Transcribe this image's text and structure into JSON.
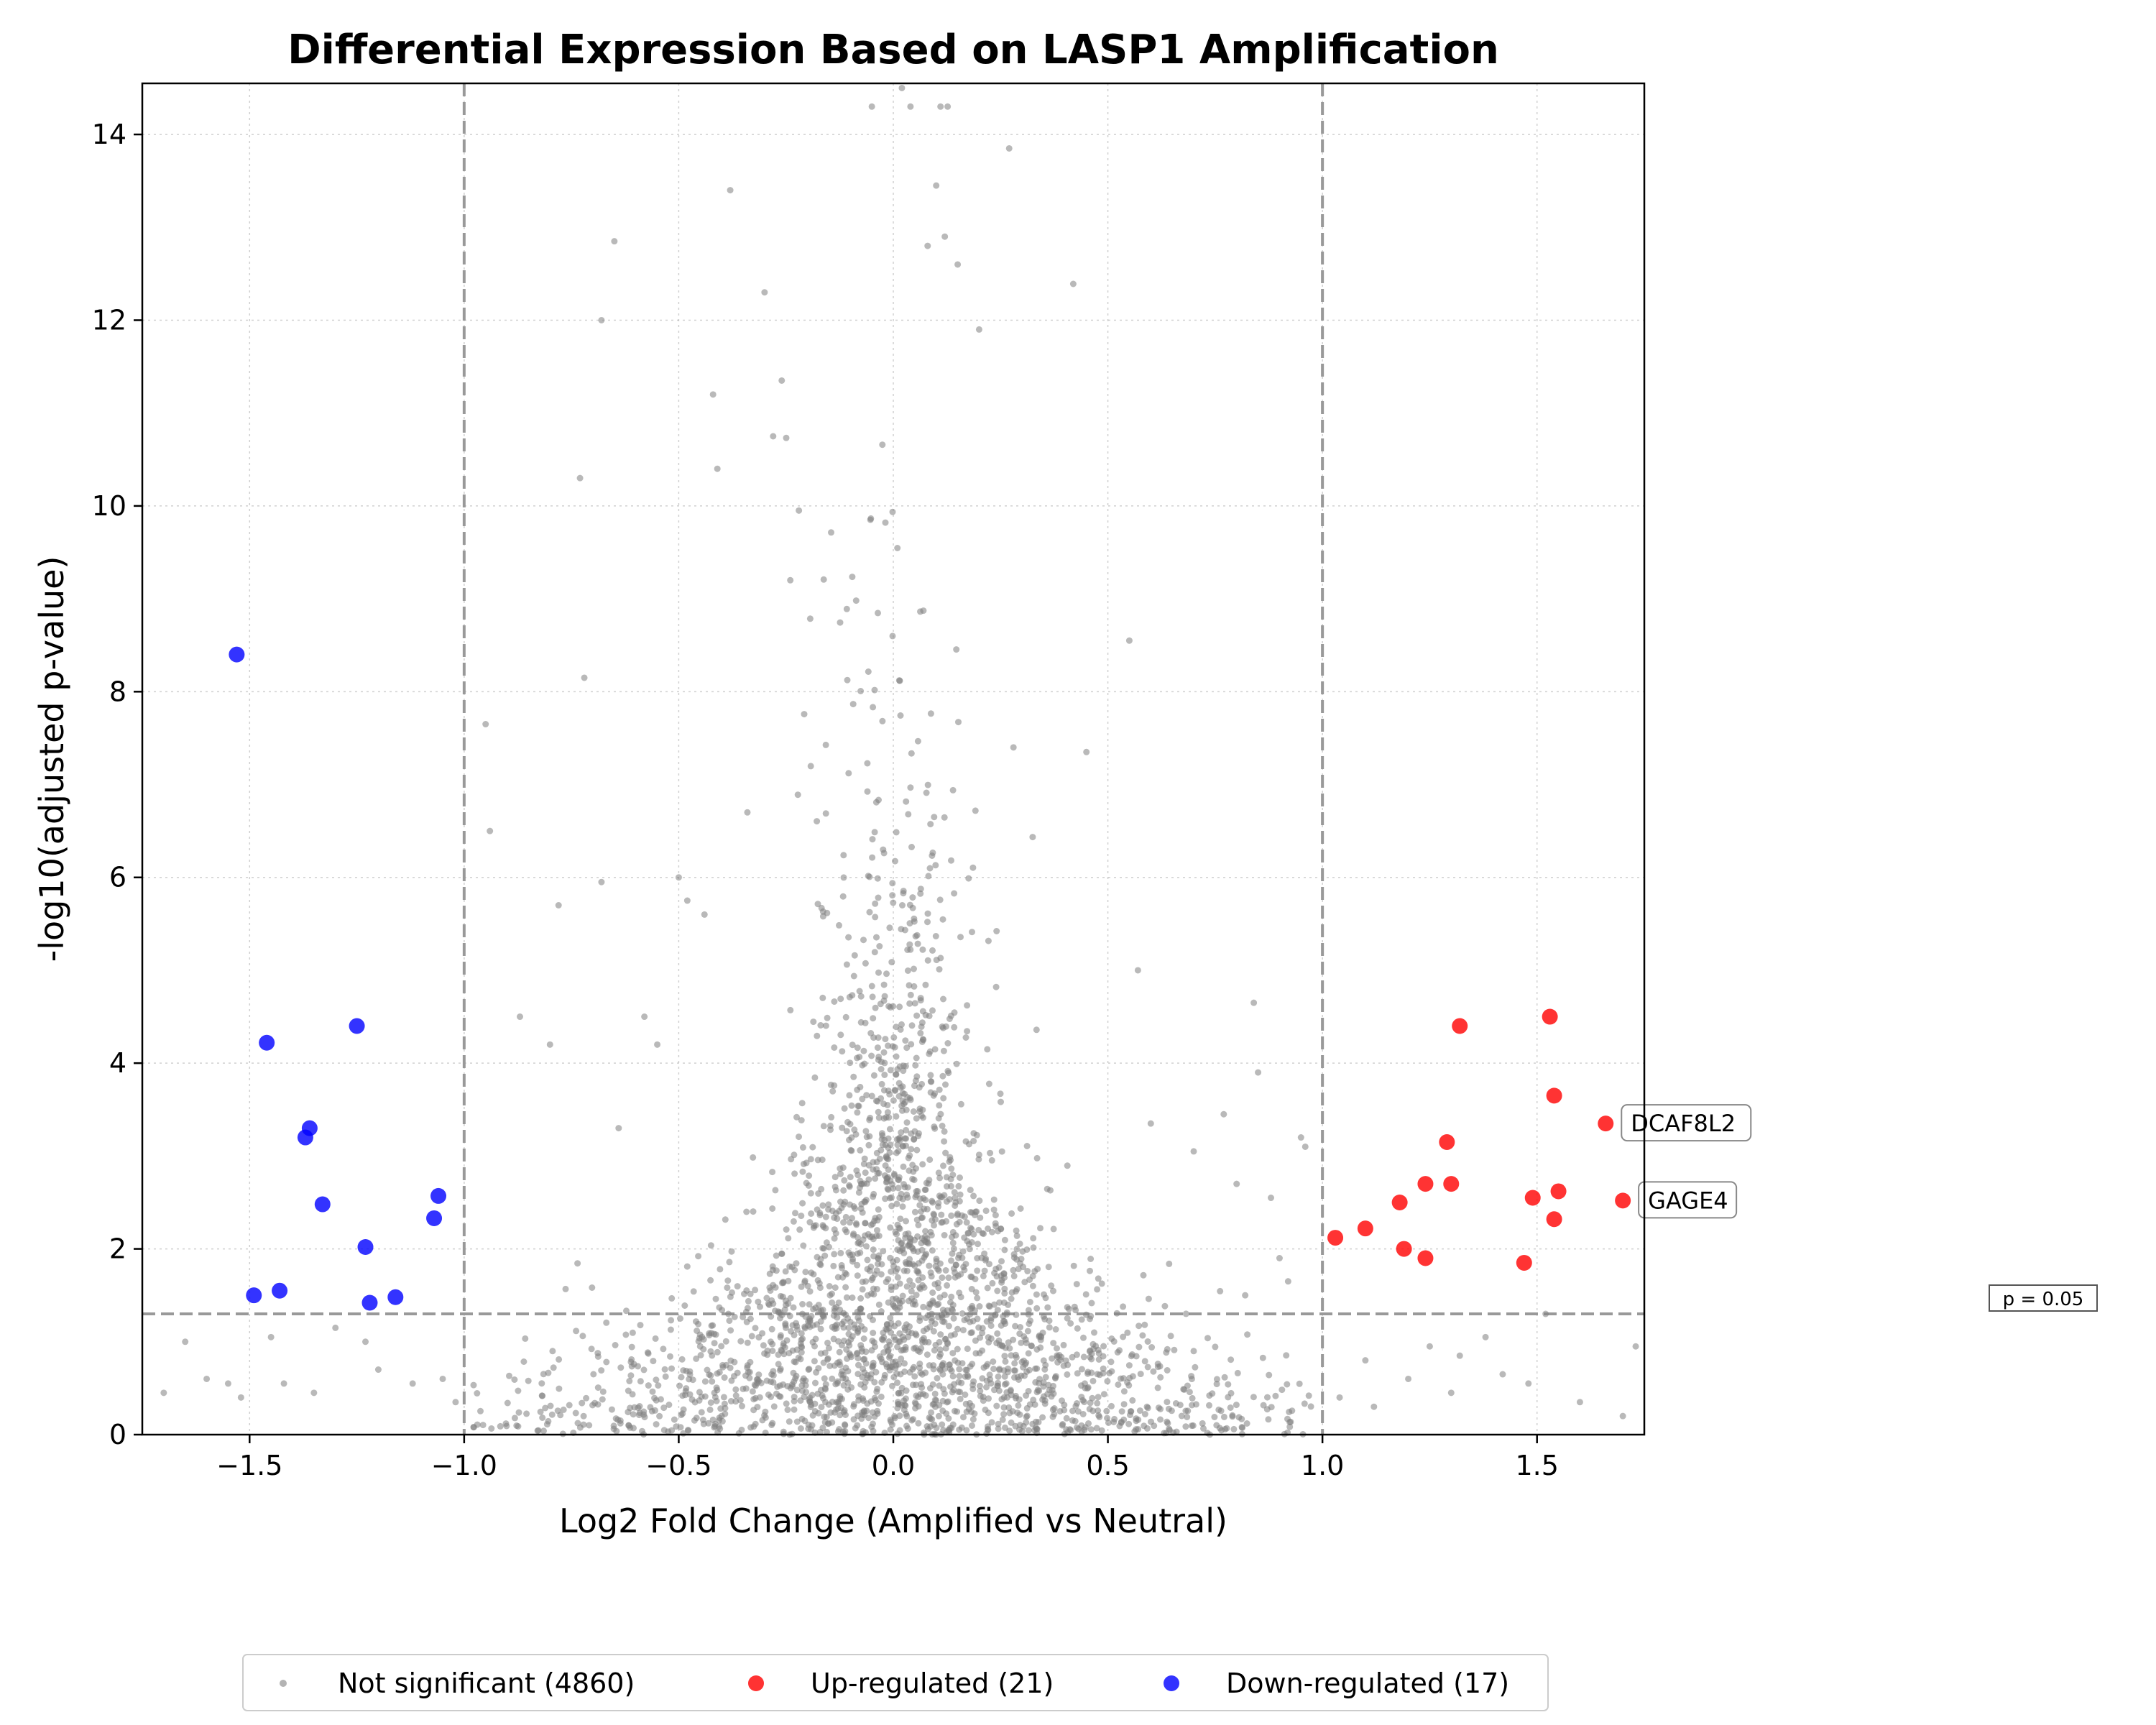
{
  "chart_data": {
    "type": "scatter",
    "title": "Differential Expression Based on LASP1 Amplification",
    "xlabel": "Log2 Fold Change (Amplified vs Neutral)",
    "ylabel": "-log10(adjusted p-value)",
    "xlim": [
      -1.75,
      1.75
    ],
    "ylim": [
      0,
      14.55
    ],
    "xticks": [
      -1.5,
      -1.0,
      -0.5,
      0.0,
      0.5,
      1.0,
      1.5
    ],
    "xtick_labels": [
      "−1.5",
      "−1.0",
      "−0.5",
      "0.0",
      "0.5",
      "1.0",
      "1.5"
    ],
    "yticks": [
      0,
      2,
      4,
      6,
      8,
      10,
      12,
      14
    ],
    "ytick_labels": [
      "0",
      "2",
      "4",
      "6",
      "8",
      "10",
      "12",
      "14"
    ],
    "grid": true,
    "legend_position": "bottom-center",
    "thresholds": {
      "log2fc": [
        -1.0,
        1.0
      ],
      "neg_log10_p": 1.3,
      "p_label": "p = 0.05"
    },
    "series": [
      {
        "name": "Not significant (4860)",
        "color": "#808080",
        "count": 4860,
        "points": [
          [
            -0.68,
            12.0
          ],
          [
            -0.65,
            12.85
          ],
          [
            -0.42,
            11.2
          ],
          [
            -0.41,
            10.4
          ],
          [
            -0.38,
            13.4
          ],
          [
            -0.3,
            12.3
          ],
          [
            -0.28,
            10.75
          ],
          [
            -0.26,
            11.35
          ],
          [
            -0.24,
            9.2
          ],
          [
            -0.22,
            9.95
          ],
          [
            0.1,
            13.45
          ],
          [
            0.08,
            12.8
          ],
          [
            0.12,
            12.9
          ],
          [
            0.15,
            12.6
          ],
          [
            0.2,
            11.9
          ],
          [
            0.27,
            13.85
          ],
          [
            0.04,
            14.3
          ],
          [
            -0.05,
            14.3
          ],
          [
            0.02,
            14.5
          ],
          [
            0.11,
            14.3
          ],
          [
            -0.73,
            10.3
          ],
          [
            -0.72,
            8.15
          ],
          [
            -0.95,
            7.65
          ],
          [
            -0.94,
            6.5
          ],
          [
            -0.68,
            5.95
          ],
          [
            -0.78,
            5.7
          ],
          [
            -0.87,
            4.5
          ],
          [
            -0.8,
            4.2
          ],
          [
            0.55,
            8.55
          ],
          [
            0.45,
            7.35
          ],
          [
            0.28,
            7.4
          ],
          [
            0.57,
            5.0
          ],
          [
            0.84,
            4.65
          ],
          [
            0.85,
            3.9
          ],
          [
            0.95,
            3.2
          ],
          [
            0.96,
            3.1
          ],
          [
            0.88,
            2.55
          ],
          [
            0.8,
            2.7
          ],
          [
            0.77,
            3.45
          ],
          [
            0.7,
            3.05
          ],
          [
            0.6,
            3.35
          ],
          [
            -0.5,
            6.0
          ],
          [
            -0.48,
            5.75
          ],
          [
            -0.44,
            5.6
          ],
          [
            -0.34,
            6.7
          ],
          [
            -0.55,
            4.2
          ],
          [
            -0.58,
            4.5
          ],
          [
            -0.64,
            3.3
          ],
          [
            -1.3,
            1.15
          ],
          [
            -1.45,
            1.05
          ],
          [
            -1.65,
            1.0
          ],
          [
            -1.6,
            0.6
          ],
          [
            -1.55,
            0.55
          ],
          [
            -1.42,
            0.55
          ],
          [
            -1.35,
            0.45
          ],
          [
            -1.23,
            1.0
          ],
          [
            -1.2,
            0.7
          ],
          [
            -1.12,
            0.55
          ],
          [
            -1.05,
            0.6
          ],
          [
            -1.02,
            0.35
          ],
          [
            -1.7,
            0.45
          ],
          [
            -1.52,
            0.4
          ],
          [
            1.1,
            0.8
          ],
          [
            1.2,
            0.6
          ],
          [
            1.25,
            0.95
          ],
          [
            1.32,
            0.85
          ],
          [
            1.38,
            1.05
          ],
          [
            1.42,
            0.65
          ],
          [
            1.48,
            0.55
          ],
          [
            1.52,
            1.3
          ],
          [
            1.6,
            0.35
          ],
          [
            1.7,
            0.2
          ],
          [
            1.73,
            0.95
          ],
          [
            1.04,
            0.4
          ],
          [
            1.12,
            0.3
          ],
          [
            1.3,
            0.45
          ],
          [
            0.92,
            1.65
          ],
          [
            0.9,
            1.9
          ],
          [
            0.82,
            1.5
          ]
        ]
      },
      {
        "name": "Up-regulated (21)",
        "color": "#ff0000",
        "count": 21,
        "points": [
          [
            1.03,
            2.12
          ],
          [
            1.1,
            2.22
          ],
          [
            1.18,
            2.5
          ],
          [
            1.19,
            2.0
          ],
          [
            1.24,
            2.7
          ],
          [
            1.24,
            1.9
          ],
          [
            1.29,
            3.15
          ],
          [
            1.3,
            2.7
          ],
          [
            1.32,
            4.4
          ],
          [
            1.47,
            1.85
          ],
          [
            1.49,
            2.55
          ],
          [
            1.53,
            4.5
          ],
          [
            1.54,
            3.65
          ],
          [
            1.54,
            2.32
          ],
          [
            1.55,
            2.62
          ],
          [
            1.66,
            3.35
          ],
          [
            1.7,
            2.52
          ]
        ]
      },
      {
        "name": "Down-regulated (17)",
        "color": "#0000ff",
        "count": 17,
        "points": [
          [
            -1.53,
            8.4
          ],
          [
            -1.46,
            4.22
          ],
          [
            -1.49,
            1.5
          ],
          [
            -1.43,
            1.55
          ],
          [
            -1.37,
            3.2
          ],
          [
            -1.36,
            3.3
          ],
          [
            -1.33,
            2.48
          ],
          [
            -1.25,
            4.4
          ],
          [
            -1.23,
            2.02
          ],
          [
            -1.22,
            1.42
          ],
          [
            -1.16,
            1.48
          ],
          [
            -1.07,
            2.33
          ],
          [
            -1.06,
            2.57
          ]
        ]
      }
    ],
    "annotations": [
      {
        "gene": "DCAF8L2",
        "x": 1.66,
        "y": 3.35
      },
      {
        "gene": "GAGE4",
        "x": 1.7,
        "y": 2.52
      }
    ]
  }
}
